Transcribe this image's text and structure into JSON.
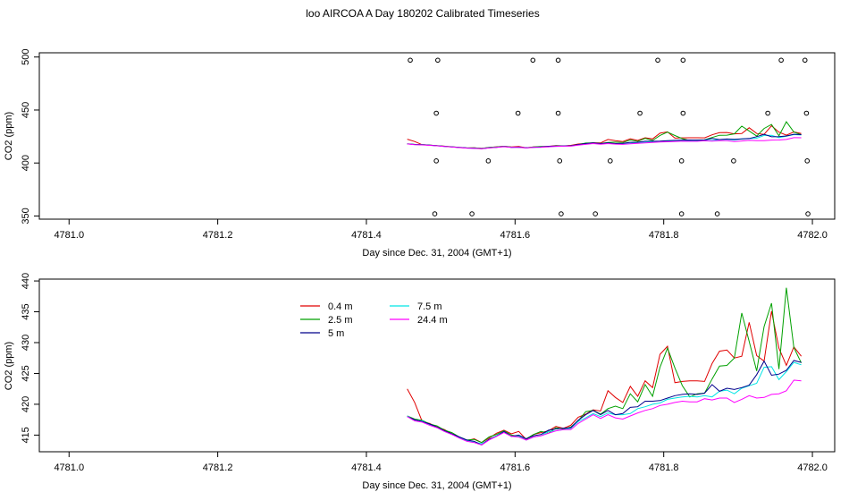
{
  "title": "loo AIRCOA A  Day 180202  Calibrated Timeseries",
  "colors": {
    "0.4 m": "#e00000",
    "2.5 m": "#00a000",
    "5 m": "#00008b",
    "7.5 m": "#00e5e5",
    "24.4 m": "#ff00ff",
    "flags": "#000000"
  },
  "chart_data": [
    {
      "type": "line",
      "xlabel": "Day since Dec. 31, 2004 (GMT+1)",
      "ylabel": "CO2 (ppm)",
      "xlim": [
        4780.96,
        4782.03
      ],
      "ylim": [
        347,
        504
      ],
      "xticks": [
        4781.0,
        4781.2,
        4781.4,
        4781.6,
        4781.8,
        4782.0
      ],
      "xtick_labels": [
        "4781.0",
        "4781.2",
        "4781.4",
        "4781.6",
        "4781.8",
        "4782.0"
      ],
      "yticks": [
        350,
        400,
        450,
        500
      ],
      "ytick_labels": [
        "350",
        "400",
        "450",
        "500"
      ],
      "grid": false,
      "flag_points": [
        {
          "x": 4781.459,
          "y": 497
        },
        {
          "x": 4781.496,
          "y": 497
        },
        {
          "x": 4781.624,
          "y": 497
        },
        {
          "x": 4781.658,
          "y": 497
        },
        {
          "x": 4781.792,
          "y": 497
        },
        {
          "x": 4781.826,
          "y": 497
        },
        {
          "x": 4781.958,
          "y": 497
        },
        {
          "x": 4781.99,
          "y": 497
        },
        {
          "x": 4781.494,
          "y": 447
        },
        {
          "x": 4781.604,
          "y": 447
        },
        {
          "x": 4781.658,
          "y": 447
        },
        {
          "x": 4781.768,
          "y": 447
        },
        {
          "x": 4781.826,
          "y": 447
        },
        {
          "x": 4781.94,
          "y": 447
        },
        {
          "x": 4781.992,
          "y": 447
        },
        {
          "x": 4781.494,
          "y": 402
        },
        {
          "x": 4781.564,
          "y": 402
        },
        {
          "x": 4781.66,
          "y": 402
        },
        {
          "x": 4781.728,
          "y": 402
        },
        {
          "x": 4781.824,
          "y": 402
        },
        {
          "x": 4781.894,
          "y": 402
        },
        {
          "x": 4781.993,
          "y": 402
        },
        {
          "x": 4781.492,
          "y": 352
        },
        {
          "x": 4781.542,
          "y": 352
        },
        {
          "x": 4781.662,
          "y": 352
        },
        {
          "x": 4781.708,
          "y": 352
        },
        {
          "x": 4781.824,
          "y": 352
        },
        {
          "x": 4781.872,
          "y": 352
        },
        {
          "x": 4781.994,
          "y": 352
        }
      ]
    },
    {
      "type": "line",
      "xlabel": "Day since Dec. 31, 2004 (GMT+1)",
      "ylabel": "CO2 (ppm)",
      "xlim": [
        4780.96,
        4782.03
      ],
      "ylim": [
        412.3,
        440.3
      ],
      "xticks": [
        4781.0,
        4781.2,
        4781.4,
        4781.6,
        4781.8,
        4782.0
      ],
      "xtick_labels": [
        "4781.0",
        "4781.2",
        "4781.4",
        "4781.6",
        "4781.8",
        "4782.0"
      ],
      "yticks": [
        415,
        420,
        425,
        430,
        435,
        440
      ],
      "ytick_labels": [
        "415",
        "420",
        "425",
        "430",
        "435",
        "440"
      ],
      "grid": false,
      "legend_position": "top-left",
      "legend_columns": [
        [
          "0.4 m",
          "2.5 m",
          "5 m"
        ],
        [
          "7.5 m",
          "24.4 m"
        ]
      ],
      "x": [
        4781.455,
        4781.465,
        4781.475,
        4781.485,
        4781.495,
        4781.505,
        4781.515,
        4781.525,
        4781.535,
        4781.545,
        4781.555,
        4781.565,
        4781.575,
        4781.585,
        4781.595,
        4781.605,
        4781.615,
        4781.625,
        4781.635,
        4781.645,
        4781.655,
        4781.665,
        4781.675,
        4781.685,
        4781.695,
        4781.705,
        4781.715,
        4781.725,
        4781.735,
        4781.745,
        4781.755,
        4781.765,
        4781.775,
        4781.785,
        4781.795,
        4781.805,
        4781.815,
        4781.825,
        4781.835,
        4781.845,
        4781.855,
        4781.865,
        4781.875,
        4781.885,
        4781.895,
        4781.905,
        4781.915,
        4781.925,
        4781.935,
        4781.945,
        4781.955,
        4781.965,
        4781.975,
        4781.985
      ],
      "series": [
        {
          "name": "0.4 m",
          "values": [
            422.5,
            420.3,
            417.2,
            416.9,
            416.3,
            415.9,
            415.2,
            414.6,
            414.1,
            414.4,
            413.8,
            414.5,
            415.3,
            415.8,
            415.2,
            415.6,
            414.3,
            415.1,
            415.4,
            415.7,
            416.4,
            416.1,
            416.6,
            417.9,
            418.4,
            419.1,
            418.9,
            422.2,
            421.1,
            420.3,
            422.9,
            421.3,
            423.8,
            422.7,
            428.1,
            429.4,
            423.5,
            423.7,
            423.8,
            423.8,
            423.7,
            426.6,
            428.6,
            428.8,
            427.5,
            427.8,
            433.3,
            427.9,
            427.0,
            435.1,
            429.1,
            426.3,
            429.3,
            427.8
          ]
        },
        {
          "name": "2.5 m",
          "values": [
            418.1,
            417.6,
            417.4,
            416.8,
            416.5,
            415.8,
            415.4,
            414.7,
            414.2,
            414.3,
            413.8,
            414.7,
            415.1,
            415.7,
            415.0,
            414.8,
            414.4,
            415.1,
            415.6,
            415.3,
            416.2,
            416.0,
            416.3,
            417.3,
            418.8,
            419.0,
            418.4,
            419.3,
            419.7,
            419.3,
            421.7,
            420.4,
            423.2,
            421.3,
            426.0,
            429.1,
            425.9,
            423.0,
            421.2,
            421.7,
            421.8,
            424.1,
            426.2,
            426.3,
            427.5,
            434.8,
            430.2,
            425.4,
            432.6,
            436.4,
            425.7,
            438.9,
            429.2,
            426.7
          ]
        },
        {
          "name": "5 m",
          "values": [
            418.0,
            417.5,
            417.2,
            416.8,
            416.3,
            415.7,
            415.2,
            414.7,
            414.2,
            414.0,
            413.4,
            414.3,
            414.8,
            415.6,
            414.8,
            415.0,
            414.4,
            414.9,
            415.1,
            415.8,
            416.0,
            416.1,
            416.2,
            417.4,
            418.3,
            419.0,
            418.3,
            419.0,
            418.3,
            418.5,
            419.5,
            419.6,
            420.5,
            420.5,
            420.6,
            421.0,
            421.4,
            421.6,
            421.7,
            421.6,
            421.8,
            423.2,
            422.1,
            422.6,
            422.4,
            422.7,
            423.1,
            424.8,
            427.0,
            424.7,
            424.9,
            425.5,
            427.1,
            426.8
          ]
        },
        {
          "name": "7.5 m",
          "values": [
            418.1,
            417.4,
            417.3,
            416.7,
            416.2,
            415.6,
            415.1,
            414.6,
            414.1,
            413.9,
            413.6,
            414.3,
            414.9,
            415.6,
            414.8,
            414.9,
            414.2,
            414.7,
            414.9,
            415.6,
            415.7,
            415.9,
            416.1,
            417.2,
            417.8,
            418.5,
            418.0,
            418.6,
            418.3,
            418.3,
            418.5,
            419.3,
            419.6,
            420.0,
            420.2,
            420.8,
            421.0,
            421.2,
            421.3,
            421.2,
            421.4,
            421.2,
            422.1,
            422.3,
            421.7,
            422.6,
            423.0,
            423.4,
            426.0,
            426.1,
            424.0,
            425.3,
            426.8,
            426.4
          ]
        },
        {
          "name": "24.4 m",
          "values": [
            418.0,
            417.3,
            417.1,
            416.6,
            416.2,
            415.6,
            415.1,
            414.5,
            414.0,
            413.8,
            413.4,
            414.2,
            414.8,
            415.4,
            414.8,
            414.7,
            414.2,
            414.7,
            414.9,
            415.3,
            415.7,
            415.9,
            415.9,
            416.9,
            417.6,
            418.3,
            417.7,
            418.3,
            417.8,
            417.6,
            418.1,
            418.6,
            419.0,
            419.3,
            419.8,
            420.0,
            420.3,
            420.5,
            420.4,
            420.4,
            420.9,
            420.7,
            421.0,
            421.0,
            420.3,
            420.8,
            421.4,
            421.0,
            421.1,
            421.6,
            421.7,
            422.2,
            423.9,
            423.8
          ]
        }
      ]
    }
  ]
}
